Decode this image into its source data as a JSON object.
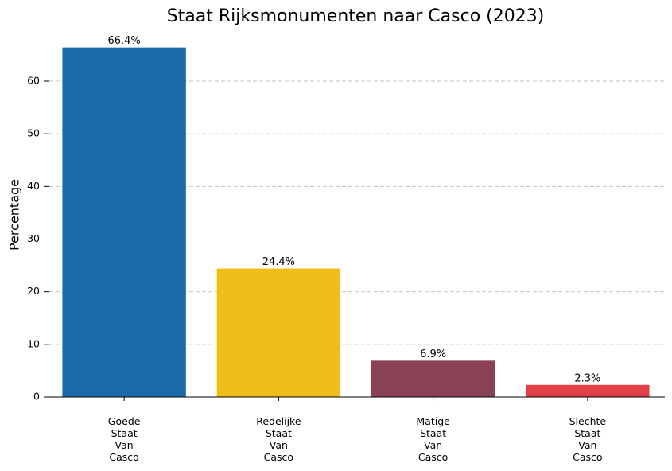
{
  "chart_data": {
    "type": "bar",
    "title": "Staat Rijksmonumenten naar Casco (2023)",
    "y_label": "Percentage",
    "categories": [
      "Goede\nStaat\nVan\nCasco",
      "Redelijke\nStaat\nVan\nCasco",
      "Matige\nStaat\nVan\nCasco",
      "Slechte\nStaat\nVan\nCasco"
    ],
    "values": [
      66.4,
      24.4,
      6.9,
      2.3
    ],
    "value_labels": [
      "66.4%",
      "24.4%",
      "6.9%",
      "2.3%"
    ],
    "colors": [
      "#1a6aab",
      "#f0be1a",
      "#8b4155",
      "#e04146"
    ],
    "ylim": [
      0,
      69.72
    ],
    "yticks": [
      0,
      10,
      20,
      30,
      40,
      50,
      60
    ],
    "grid": true
  }
}
